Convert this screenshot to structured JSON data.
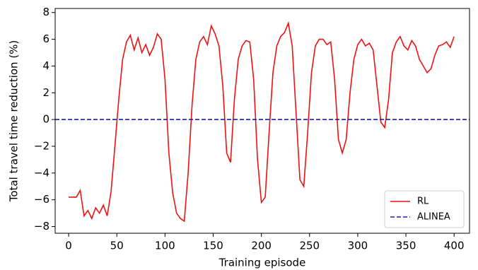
{
  "chart_data": {
    "type": "line",
    "xlabel": "Training episode",
    "ylabel": "Total travel time reduction (%)",
    "xlim": [
      -14,
      416
    ],
    "ylim": [
      -8.5,
      8.3
    ],
    "xticks": [
      0,
      50,
      100,
      150,
      200,
      250,
      300,
      350,
      400
    ],
    "yticks": [
      {
        "value": -8,
        "label": "−8"
      },
      {
        "value": -6,
        "label": "−6"
      },
      {
        "value": -4,
        "label": "−4"
      },
      {
        "value": -2,
        "label": "−2"
      },
      0,
      2,
      4,
      6,
      8
    ],
    "legend": "lower right",
    "series": [
      {
        "name": "RL",
        "color": "#ee1111",
        "linestyle": "solid",
        "x": [
          0,
          4,
          8,
          12,
          16,
          20,
          24,
          28,
          32,
          36,
          40,
          44,
          48,
          52,
          56,
          60,
          64,
          68,
          72,
          76,
          80,
          84,
          88,
          92,
          96,
          100,
          104,
          108,
          112,
          116,
          120,
          124,
          128,
          132,
          136,
          140,
          144,
          148,
          152,
          156,
          160,
          164,
          168,
          172,
          176,
          180,
          184,
          188,
          192,
          196,
          200,
          204,
          208,
          212,
          216,
          220,
          224,
          228,
          232,
          236,
          240,
          244,
          248,
          252,
          256,
          260,
          264,
          268,
          272,
          276,
          280,
          284,
          288,
          292,
          296,
          300,
          304,
          308,
          312,
          316,
          320,
          324,
          328,
          332,
          336,
          340,
          344,
          348,
          352,
          356,
          360,
          364,
          368,
          372,
          376,
          380,
          384,
          388,
          392,
          396,
          400
        ],
        "values": [
          -5.8,
          -5.8,
          -5.8,
          -5.3,
          -7.2,
          -6.8,
          -7.4,
          -6.6,
          -7.0,
          -6.4,
          -7.2,
          -5.4,
          -2.0,
          1.5,
          4.5,
          5.8,
          6.3,
          5.2,
          6.1,
          5.0,
          5.6,
          4.8,
          5.4,
          6.4,
          6.0,
          3.0,
          -2.5,
          -5.5,
          -7.0,
          -7.4,
          -7.6,
          -4.0,
          1.0,
          4.5,
          5.8,
          6.2,
          5.6,
          7.0,
          6.4,
          5.5,
          2.5,
          -2.5,
          -3.2,
          1.5,
          4.5,
          5.5,
          5.9,
          5.8,
          3.0,
          -3.0,
          -6.2,
          -5.8,
          -1.0,
          3.5,
          5.5,
          6.2,
          6.5,
          7.2,
          5.5,
          0.5,
          -4.5,
          -5.0,
          -1.0,
          3.5,
          5.5,
          6.0,
          6.0,
          5.6,
          5.8,
          3.0,
          -1.5,
          -2.5,
          -1.5,
          2.0,
          4.5,
          5.6,
          6.0,
          5.5,
          5.7,
          5.2,
          2.5,
          -0.2,
          -0.6,
          1.5,
          5.0,
          5.8,
          6.2,
          5.5,
          5.2,
          5.9,
          5.5,
          4.5,
          4.0,
          3.5,
          3.8,
          4.8,
          5.5,
          5.6,
          5.8,
          5.4,
          6.2
        ]
      },
      {
        "name": "ALINEA",
        "color": "#1a1aaa",
        "linestyle": "dashed",
        "x": [
          -14,
          416
        ],
        "values": [
          0,
          0
        ]
      }
    ]
  }
}
